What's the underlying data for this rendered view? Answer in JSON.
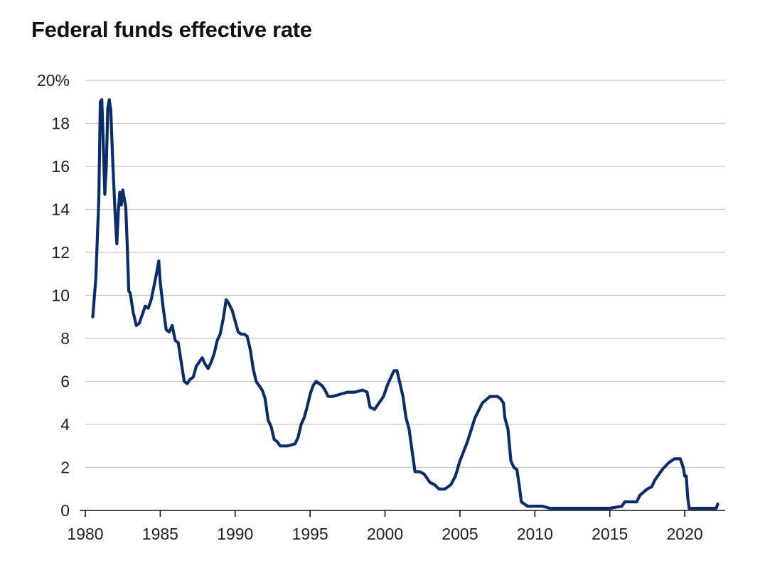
{
  "chart_data": {
    "type": "line",
    "title": "Federal funds effective rate",
    "xlabel": "",
    "ylabel": "",
    "xlim": [
      1980,
      2022.7
    ],
    "ylim": [
      0,
      20
    ],
    "grid": true,
    "line_color": "#0b2d6b",
    "grid_color": "#c8c8c8",
    "y_ticks": [
      {
        "value": 20,
        "label": "20%"
      },
      {
        "value": 18,
        "label": "18"
      },
      {
        "value": 16,
        "label": "16"
      },
      {
        "value": 14,
        "label": "14"
      },
      {
        "value": 12,
        "label": "12"
      },
      {
        "value": 10,
        "label": "10"
      },
      {
        "value": 8,
        "label": "8"
      },
      {
        "value": 6,
        "label": "6"
      },
      {
        "value": 4,
        "label": "4"
      },
      {
        "value": 2,
        "label": "2"
      },
      {
        "value": 0,
        "label": "0"
      }
    ],
    "x_ticks": [
      {
        "value": 1980,
        "label": "1980"
      },
      {
        "value": 1985,
        "label": "1985"
      },
      {
        "value": 1990,
        "label": "1990"
      },
      {
        "value": 1995,
        "label": "1995"
      },
      {
        "value": 2000,
        "label": "2000"
      },
      {
        "value": 2005,
        "label": "2005"
      },
      {
        "value": 2010,
        "label": "2010"
      },
      {
        "value": 2015,
        "label": "2015"
      },
      {
        "value": 2020,
        "label": "2020"
      }
    ],
    "series": [
      {
        "x": [
          1980.5,
          1980.7,
          1980.9,
          1981.0,
          1981.1,
          1981.2,
          1981.3,
          1981.4,
          1981.5,
          1981.6,
          1981.7,
          1981.85,
          1982.0,
          1982.1,
          1982.2,
          1982.3,
          1982.4,
          1982.5,
          1982.6,
          1982.7,
          1982.8,
          1982.9,
          1983.0,
          1983.2,
          1983.4,
          1983.6,
          1983.8,
          1984.0,
          1984.2,
          1984.4,
          1984.6,
          1984.8,
          1984.9,
          1985.0,
          1985.2,
          1985.4,
          1985.6,
          1985.8,
          1986.0,
          1986.2,
          1986.4,
          1986.6,
          1986.8,
          1987.0,
          1987.2,
          1987.4,
          1987.6,
          1987.8,
          1988.0,
          1988.2,
          1988.4,
          1988.6,
          1988.8,
          1989.0,
          1989.2,
          1989.4,
          1989.6,
          1989.8,
          1990.0,
          1990.2,
          1990.4,
          1990.6,
          1990.8,
          1991.0,
          1991.2,
          1991.4,
          1991.6,
          1991.8,
          1992.0,
          1992.2,
          1992.4,
          1992.6,
          1992.8,
          1993.0,
          1993.5,
          1994.0,
          1994.2,
          1994.4,
          1994.6,
          1994.8,
          1995.0,
          1995.2,
          1995.4,
          1995.6,
          1995.8,
          1996.0,
          1996.2,
          1996.5,
          1997.0,
          1997.5,
          1998.0,
          1998.5,
          1998.8,
          1999.0,
          1999.3,
          1999.6,
          1999.9,
          2000.0,
          2000.2,
          2000.4,
          2000.6,
          2000.8,
          2001.0,
          2001.2,
          2001.4,
          2001.6,
          2001.8,
          2002.0,
          2002.3,
          2002.6,
          2003.0,
          2003.3,
          2003.6,
          2004.0,
          2004.4,
          2004.7,
          2005.0,
          2005.5,
          2006.0,
          2006.5,
          2007.0,
          2007.5,
          2007.7,
          2007.9,
          2008.0,
          2008.2,
          2008.4,
          2008.6,
          2008.8,
          2008.95,
          2009.1,
          2009.5,
          2010.0,
          2010.5,
          2011.0,
          2011.5,
          2012.0,
          2013.0,
          2014.0,
          2015.0,
          2015.8,
          2016.0,
          2016.2,
          2016.8,
          2017.0,
          2017.5,
          2017.8,
          2018.0,
          2018.5,
          2018.9,
          2019.3,
          2019.5,
          2019.7,
          2019.9,
          2020.0,
          2020.1,
          2020.2,
          2020.3,
          2020.5,
          2021.0,
          2021.5,
          2021.9,
          2022.1,
          2022.2
        ],
        "y": [
          9.0,
          10.8,
          14.5,
          19.0,
          19.1,
          17.0,
          14.7,
          16.0,
          18.7,
          19.1,
          18.6,
          15.9,
          13.6,
          12.4,
          13.9,
          14.8,
          14.2,
          14.9,
          14.5,
          14.1,
          12.3,
          10.2,
          10.1,
          9.2,
          8.6,
          8.7,
          9.1,
          9.5,
          9.4,
          9.8,
          10.5,
          11.2,
          11.6,
          10.6,
          9.4,
          8.4,
          8.3,
          8.6,
          7.9,
          7.8,
          6.9,
          6.0,
          5.9,
          6.1,
          6.2,
          6.7,
          6.9,
          7.1,
          6.8,
          6.6,
          6.9,
          7.3,
          7.9,
          8.2,
          8.9,
          9.8,
          9.6,
          9.3,
          8.8,
          8.3,
          8.2,
          8.2,
          8.1,
          7.5,
          6.6,
          6.0,
          5.8,
          5.6,
          5.2,
          4.2,
          3.9,
          3.3,
          3.2,
          3.0,
          3.0,
          3.1,
          3.4,
          4.0,
          4.3,
          4.8,
          5.4,
          5.8,
          6.0,
          5.9,
          5.8,
          5.6,
          5.3,
          5.3,
          5.4,
          5.5,
          5.5,
          5.6,
          5.5,
          4.8,
          4.7,
          5.0,
          5.3,
          5.5,
          5.9,
          6.2,
          6.5,
          6.5,
          5.9,
          5.3,
          4.3,
          3.8,
          2.8,
          1.8,
          1.8,
          1.7,
          1.3,
          1.2,
          1.0,
          1.0,
          1.2,
          1.6,
          2.3,
          3.2,
          4.3,
          5.0,
          5.3,
          5.3,
          5.2,
          5.0,
          4.3,
          3.8,
          2.3,
          2.0,
          1.9,
          1.2,
          0.4,
          0.2,
          0.2,
          0.2,
          0.1,
          0.1,
          0.1,
          0.1,
          0.1,
          0.1,
          0.2,
          0.4,
          0.4,
          0.4,
          0.7,
          1.0,
          1.1,
          1.4,
          1.9,
          2.2,
          2.4,
          2.4,
          2.4,
          2.0,
          1.6,
          1.6,
          0.6,
          0.1,
          0.1,
          0.1,
          0.1,
          0.1,
          0.1,
          0.3
        ]
      }
    ]
  }
}
